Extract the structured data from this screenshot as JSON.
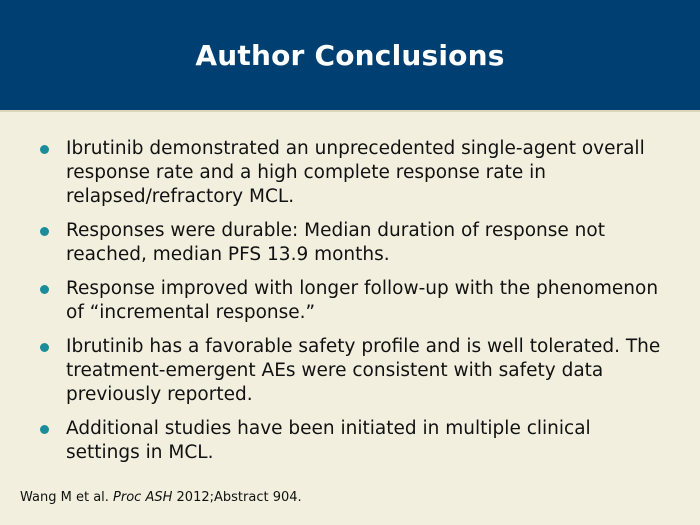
{
  "slide": {
    "title": "Author Conclusions",
    "bullets": [
      "Ibrutinib demonstrated an unprecedented single-agent overall response rate and a high complete response rate in relapsed/refractory MCL.",
      "Responses were durable: Median duration of response not reached, median PFS 13.9 months.",
      "Response improved with longer follow-up with the phenomenon of “incremental response.”",
      "Ibrutinib has a favorable safety profile and is well tolerated. The treatment-emergent AEs were consistent with safety data previously reported.",
      "Additional studies have been initiated in multiple clinical settings in MCL."
    ],
    "citation": {
      "authors": "Wang M et al.",
      "journal": "Proc ASH",
      "details": "2012;Abstract 904."
    }
  },
  "colors": {
    "header_background": "#003f72",
    "slide_background": "#f3efdf",
    "bullet_dot": "#1b8c99",
    "title_text": "#ffffff"
  }
}
